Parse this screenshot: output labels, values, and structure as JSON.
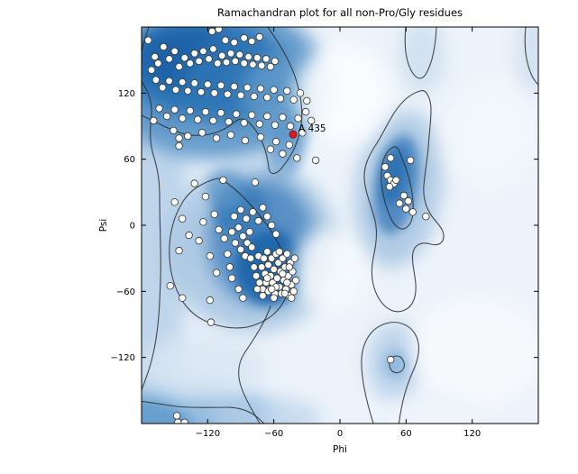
{
  "title": "Ramachandran plot for all non-Pro/Gly residues",
  "chart_data": {
    "type": "scatter",
    "title": "Ramachandran plot for all non-Pro/Gly residues",
    "xlabel": "Phi",
    "ylabel": "Psi",
    "xlim": [
      -180,
      180
    ],
    "ylim": [
      -180,
      180
    ],
    "grid": false,
    "legend_position": "none",
    "background_description": "blue kernel-density map of favoured (dark blue) and allowed (light blue) regions with two black contour levels",
    "xticks": [
      {
        "value": -120,
        "label": "−120"
      },
      {
        "value": -60,
        "label": "−60"
      },
      {
        "value": 0,
        "label": "0"
      },
      {
        "value": 60,
        "label": "60"
      },
      {
        "value": 120,
        "label": "120"
      }
    ],
    "yticks": [
      {
        "value": 120,
        "label": "120"
      },
      {
        "value": 60,
        "label": "60"
      },
      {
        "value": 0,
        "label": "0"
      },
      {
        "value": -60,
        "label": "−60"
      },
      {
        "value": -120,
        "label": "−120"
      }
    ],
    "colors": {
      "density_dark": "#1a62a8",
      "density_mid": "#4985c0",
      "density_light": "#bcd4ea",
      "plot_background": "#edf3fa",
      "contour_line": "#2b2b2b",
      "marker_fill": "#fcfcf8",
      "marker_edge": "#333333",
      "outlier_fill": "#e31a1c",
      "outlier_edge": "#7f0000"
    },
    "series": [
      {
        "name": "non-Pro/Gly residues",
        "marker": "circle",
        "points": [
          [
            -174,
            168
          ],
          [
            -168,
            153
          ],
          [
            -171,
            141
          ],
          [
            -165,
            147
          ],
          [
            -160,
            162
          ],
          [
            -155,
            151
          ],
          [
            -150,
            158
          ],
          [
            -146,
            144
          ],
          [
            -141,
            152
          ],
          [
            -136,
            147
          ],
          [
            -132,
            156
          ],
          [
            -128,
            149
          ],
          [
            -124,
            158
          ],
          [
            -119,
            151
          ],
          [
            -115,
            160
          ],
          [
            -111,
            147
          ],
          [
            -107,
            154
          ],
          [
            -103,
            148
          ],
          [
            -99,
            156
          ],
          [
            -95,
            149
          ],
          [
            -91,
            155
          ],
          [
            -87,
            147
          ],
          [
            -83,
            153
          ],
          [
            -79,
            146
          ],
          [
            -75,
            152
          ],
          [
            -71,
            145
          ],
          [
            -67,
            151
          ],
          [
            -63,
            144
          ],
          [
            -59,
            149
          ],
          [
            -116,
            176
          ],
          [
            -110,
            178
          ],
          [
            -87,
            170
          ],
          [
            -80,
            167
          ],
          [
            -73,
            171
          ],
          [
            -96,
            166
          ],
          [
            -104,
            168
          ],
          [
            -167,
            132
          ],
          [
            -161,
            125
          ],
          [
            -155,
            131
          ],
          [
            -149,
            123
          ],
          [
            -143,
            130
          ],
          [
            -138,
            122
          ],
          [
            -132,
            129
          ],
          [
            -126,
            121
          ],
          [
            -120,
            128
          ],
          [
            -114,
            120
          ],
          [
            -108,
            127
          ],
          [
            -102,
            119
          ],
          [
            -96,
            126
          ],
          [
            -90,
            118
          ],
          [
            -84,
            125
          ],
          [
            -78,
            117
          ],
          [
            -72,
            124
          ],
          [
            -66,
            116
          ],
          [
            -60,
            123
          ],
          [
            -54,
            115
          ],
          [
            -48,
            122
          ],
          [
            -42,
            114
          ],
          [
            -36,
            120
          ],
          [
            -30,
            113
          ],
          [
            -164,
            106
          ],
          [
            -157,
            99
          ],
          [
            -150,
            105
          ],
          [
            -143,
            97
          ],
          [
            -136,
            104
          ],
          [
            -129,
            96
          ],
          [
            -122,
            103
          ],
          [
            -115,
            95
          ],
          [
            -108,
            102
          ],
          [
            -101,
            94
          ],
          [
            -94,
            101
          ],
          [
            -87,
            93
          ],
          [
            -80,
            100
          ],
          [
            -73,
            92
          ],
          [
            -66,
            99
          ],
          [
            -59,
            91
          ],
          [
            -52,
            98
          ],
          [
            -45,
            90
          ],
          [
            -38,
            97
          ],
          [
            -31,
            103
          ],
          [
            -26,
            95
          ],
          [
            -151,
            86
          ],
          [
            -138,
            81
          ],
          [
            -125,
            84
          ],
          [
            -112,
            79
          ],
          [
            -99,
            82
          ],
          [
            -86,
            77
          ],
          [
            -72,
            80
          ],
          [
            -58,
            76
          ],
          [
            -46,
            73
          ],
          [
            -34,
            84
          ],
          [
            -22,
            59
          ],
          [
            -39,
            61
          ],
          [
            -52,
            65
          ],
          [
            -63,
            69
          ],
          [
            -169,
            95
          ],
          [
            -146,
            79
          ],
          [
            -146,
            72
          ],
          [
            -132,
            38
          ],
          [
            -106,
            41
          ],
          [
            -77,
            39
          ],
          [
            -150,
            21
          ],
          [
            -143,
            6
          ],
          [
            -137,
            -9
          ],
          [
            -146,
            -23
          ],
          [
            -128,
            -14
          ],
          [
            -124,
            3
          ],
          [
            -118,
            -28
          ],
          [
            -122,
            26
          ],
          [
            -98,
            -6
          ],
          [
            -95,
            -16
          ],
          [
            -92,
            -2
          ],
          [
            -90,
            -22
          ],
          [
            -88,
            -10
          ],
          [
            -86,
            -28
          ],
          [
            -84,
            -16
          ],
          [
            -82,
            -6
          ],
          [
            -80,
            -20
          ],
          [
            -96,
            8
          ],
          [
            -90,
            14
          ],
          [
            -85,
            6
          ],
          [
            -79,
            12
          ],
          [
            -74,
            4
          ],
          [
            -70,
            16
          ],
          [
            -66,
            8
          ],
          [
            -62,
            0
          ],
          [
            -58,
            -8
          ],
          [
            -105,
            -12
          ],
          [
            -102,
            -26
          ],
          [
            -110,
            -4
          ],
          [
            -114,
            10
          ],
          [
            -81,
            -30
          ],
          [
            -78,
            -38
          ],
          [
            -76,
            -46
          ],
          [
            -74,
            -28
          ],
          [
            -73,
            -52
          ],
          [
            -71,
            -38
          ],
          [
            -70,
            -58
          ],
          [
            -69,
            -30
          ],
          [
            -68,
            -44
          ],
          [
            -67,
            -52
          ],
          [
            -66,
            -24
          ],
          [
            -65,
            -36
          ],
          [
            -64,
            -58
          ],
          [
            -63,
            -46
          ],
          [
            -62,
            -30
          ],
          [
            -61,
            -52
          ],
          [
            -60,
            -40
          ],
          [
            -59,
            -62
          ],
          [
            -58,
            -26
          ],
          [
            -57,
            -48
          ],
          [
            -56,
            -34
          ],
          [
            -55,
            -56
          ],
          [
            -54,
            -42
          ],
          [
            -53,
            -62
          ],
          [
            -52,
            -30
          ],
          [
            -51,
            -50
          ],
          [
            -50,
            -38
          ],
          [
            -49,
            -58
          ],
          [
            -48,
            -26
          ],
          [
            -47,
            -46
          ],
          [
            -46,
            -64
          ],
          [
            -45,
            -34
          ],
          [
            -44,
            -54
          ],
          [
            -43,
            -42
          ],
          [
            -42,
            -60
          ],
          [
            -41,
            -30
          ],
          [
            -40,
            -50
          ],
          [
            -46,
            -38
          ],
          [
            -50,
            -62
          ],
          [
            -55,
            -24
          ],
          [
            -60,
            -66
          ],
          [
            -65,
            -60
          ],
          [
            -70,
            -64
          ],
          [
            -75,
            -58
          ],
          [
            -44,
            -66
          ],
          [
            -48,
            -52
          ],
          [
            -52,
            -44
          ],
          [
            -58,
            -56
          ],
          [
            -62,
            -58
          ],
          [
            -66,
            -48
          ],
          [
            -98,
            -48
          ],
          [
            -92,
            -58
          ],
          [
            -88,
            -66
          ],
          [
            -112,
            -43
          ],
          [
            -100,
            -38
          ],
          [
            -154,
            -55
          ],
          [
            -143,
            -66
          ],
          [
            -118,
            -68
          ],
          [
            -117,
            -88
          ],
          [
            46,
            61
          ],
          [
            64,
            59
          ],
          [
            41,
            53
          ],
          [
            43,
            45
          ],
          [
            46,
            41
          ],
          [
            49,
            38
          ],
          [
            51,
            41
          ],
          [
            45,
            35
          ],
          [
            58,
            27
          ],
          [
            62,
            22
          ],
          [
            54,
            20
          ],
          [
            60,
            15
          ],
          [
            66,
            12
          ],
          [
            78,
            8
          ],
          [
            46,
            -122
          ],
          [
            -148,
            -173
          ],
          [
            -147,
            -179
          ],
          [
            -141,
            -179
          ]
        ]
      }
    ],
    "outlier": {
      "label": "A 435",
      "phi": -42.5,
      "psi": 82.5
    }
  }
}
